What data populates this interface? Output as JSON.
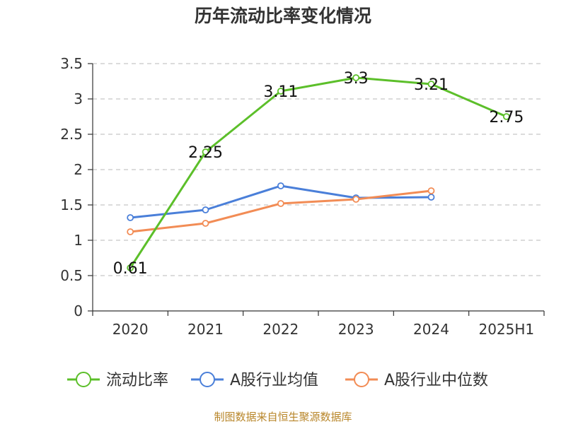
{
  "chart_data": {
    "type": "line",
    "title": "历年流动比率变化情况",
    "categories": [
      "2020",
      "2021",
      "2022",
      "2023",
      "2024",
      "2025H1"
    ],
    "ylim": [
      0,
      3.5
    ],
    "yticks": [
      "0",
      "0.5",
      "1",
      "1.5",
      "2",
      "2.5",
      "3",
      "3.5"
    ],
    "grid": "horizontal-dashed",
    "legend_position": "bottom",
    "series": [
      {
        "name": "流动比率",
        "color": "#5cbf2a",
        "values": [
          0.61,
          2.25,
          3.11,
          3.3,
          3.21,
          2.75
        ],
        "labels": [
          "0.61",
          "2.25",
          "3.11",
          "3.3",
          "3.21",
          "2.75"
        ]
      },
      {
        "name": "A股行业均值",
        "color": "#4a7fd9",
        "values": [
          1.32,
          1.43,
          1.77,
          1.6,
          1.61,
          null
        ]
      },
      {
        "name": "A股行业中位数",
        "color": "#f28c55",
        "values": [
          1.12,
          1.24,
          1.52,
          1.58,
          1.7,
          null
        ]
      }
    ]
  },
  "footer": "制图数据来自恒生聚源数据库"
}
